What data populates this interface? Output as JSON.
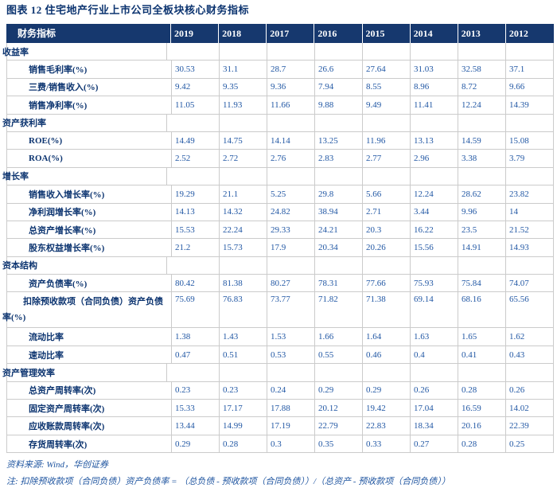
{
  "title": "图表 12  住宅地产行业上市公司全板块核心财务指标",
  "colors": {
    "header_background": "#16386E",
    "label_text": "#0C3470",
    "value_text": "#2157A4",
    "grid_border": "#CBCBCB",
    "footer_text": "#1F55A0"
  },
  "table": {
    "columns": [
      "财务指标",
      "2019",
      "2018",
      "2017",
      "2016",
      "2015",
      "2014",
      "2013",
      "2012"
    ],
    "rows": [
      {
        "type": "section",
        "label": "收益率",
        "values": [
          "",
          "",
          "",
          "",
          "",
          "",
          "",
          ""
        ]
      },
      {
        "type": "data",
        "label": "销售毛利率(%)",
        "values": [
          "30.53",
          "31.1",
          "28.7",
          "26.6",
          "27.64",
          "31.03",
          "32.58",
          "37.1"
        ]
      },
      {
        "type": "data",
        "label": "三费/销售收入(%)",
        "values": [
          "9.42",
          "9.35",
          "9.36",
          "7.94",
          "8.55",
          "8.96",
          "8.72",
          "9.66"
        ]
      },
      {
        "type": "data",
        "label": "销售净利率(%)",
        "values": [
          "11.05",
          "11.93",
          "11.66",
          "9.88",
          "9.49",
          "11.41",
          "12.24",
          "14.39"
        ]
      },
      {
        "type": "section",
        "label": "资产获利率",
        "values": [
          "",
          "",
          "",
          "",
          "",
          "",
          "",
          ""
        ]
      },
      {
        "type": "data",
        "label": "ROE(%)",
        "values": [
          "14.49",
          "14.75",
          "14.14",
          "13.25",
          "11.96",
          "13.13",
          "14.59",
          "15.08"
        ]
      },
      {
        "type": "data",
        "label": "ROA(%)",
        "values": [
          "2.52",
          "2.72",
          "2.76",
          "2.83",
          "2.77",
          "2.96",
          "3.38",
          "3.79"
        ]
      },
      {
        "type": "section",
        "label": "增长率",
        "values": [
          "",
          "",
          "",
          "",
          "",
          "",
          "",
          ""
        ]
      },
      {
        "type": "data",
        "label": "销售收入增长率(%)",
        "values": [
          "19.29",
          "21.1",
          "5.25",
          "29.8",
          "5.66",
          "12.24",
          "28.62",
          "23.82"
        ]
      },
      {
        "type": "data",
        "label": "净利润增长率(%)",
        "values": [
          "14.13",
          "14.32",
          "24.82",
          "38.94",
          "2.71",
          "3.44",
          "9.96",
          "14"
        ]
      },
      {
        "type": "data",
        "label": "总资产增长率(%)",
        "values": [
          "15.53",
          "22.24",
          "29.33",
          "24.21",
          "20.3",
          "16.22",
          "23.5",
          "21.52"
        ]
      },
      {
        "type": "data",
        "label": "股东权益增长率(%)",
        "values": [
          "21.2",
          "15.73",
          "17.9",
          "20.34",
          "20.26",
          "15.56",
          "14.91",
          "14.93"
        ]
      },
      {
        "type": "section",
        "label": "资本结构",
        "values": [
          "",
          "",
          "",
          "",
          "",
          "",
          "",
          ""
        ]
      },
      {
        "type": "data",
        "label": "资产负债率(%)",
        "values": [
          "80.42",
          "81.38",
          "80.27",
          "78.31",
          "77.66",
          "75.93",
          "75.84",
          "74.07"
        ]
      },
      {
        "type": "data-tall",
        "label": "扣除预收款项（合同负债）资产负债率(%)",
        "values": [
          "75.69",
          "76.83",
          "73.77",
          "71.82",
          "71.38",
          "69.14",
          "68.16",
          "65.56"
        ]
      },
      {
        "type": "data",
        "label": "流动比率",
        "values": [
          "1.38",
          "1.43",
          "1.53",
          "1.66",
          "1.64",
          "1.63",
          "1.65",
          "1.62"
        ]
      },
      {
        "type": "data",
        "label": "速动比率",
        "values": [
          "0.47",
          "0.51",
          "0.53",
          "0.55",
          "0.46",
          "0.4",
          "0.41",
          "0.43"
        ]
      },
      {
        "type": "section",
        "label": "资产管理效率",
        "values": [
          "",
          "",
          "",
          "",
          "",
          "",
          "",
          ""
        ]
      },
      {
        "type": "data",
        "label": "总资产周转率(次)",
        "values": [
          "0.23",
          "0.23",
          "0.24",
          "0.29",
          "0.29",
          "0.26",
          "0.28",
          "0.26"
        ]
      },
      {
        "type": "data",
        "label": "固定资产周转率(次)",
        "values": [
          "15.33",
          "17.17",
          "17.88",
          "20.12",
          "19.42",
          "17.04",
          "16.59",
          "14.02"
        ]
      },
      {
        "type": "data",
        "label": "应收账款周转率(次)",
        "values": [
          "13.44",
          "14.99",
          "17.19",
          "22.79",
          "22.83",
          "18.34",
          "20.16",
          "22.39"
        ]
      },
      {
        "type": "data",
        "label": "存货周转率(次)",
        "values": [
          "0.29",
          "0.28",
          "0.3",
          "0.35",
          "0.33",
          "0.27",
          "0.28",
          "0.25"
        ]
      }
    ]
  },
  "footer": {
    "source": "资料来源: Wind，华创证券",
    "note": "注: 扣除预收款项（合同负债）资产负债率 = （总负债 - 预收款项（合同负债））/（总资产 - 预收款项（合同负债））"
  }
}
